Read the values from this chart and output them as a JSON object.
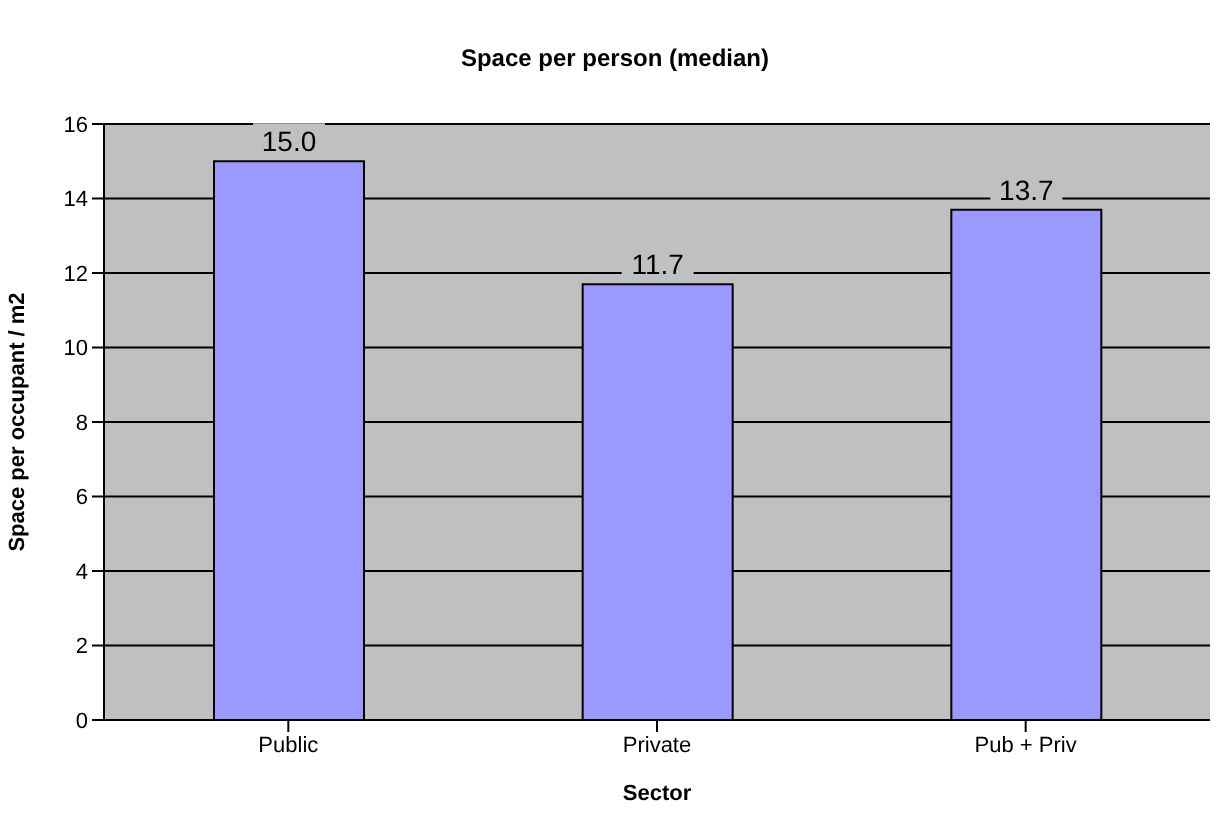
{
  "chart_data": {
    "type": "bar",
    "title": "Space per person (median)",
    "xlabel": "Sector",
    "ylabel": "Space per occupant / m2",
    "categories": [
      "Public",
      "Private",
      "Pub + Priv"
    ],
    "values": [
      15.0,
      11.7,
      13.7
    ],
    "value_labels": [
      "15.0",
      "11.7",
      "13.7"
    ],
    "color": "#9999ff",
    "ylim": [
      0,
      16
    ],
    "yticks": [
      0,
      2,
      4,
      6,
      8,
      10,
      12,
      14,
      16
    ],
    "grid": "y"
  }
}
